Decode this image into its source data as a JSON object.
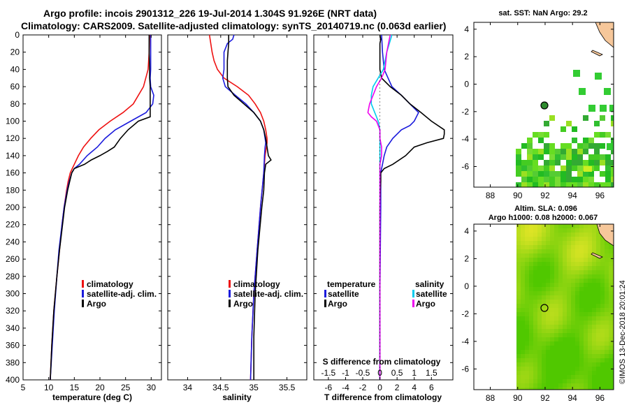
{
  "header": {
    "title_line1": "Argo profile: incois 2901312_226 19-Jul-2014 1.304S 91.926E (NRT data)",
    "title_line2": "Climatology: CARS2009. Satellite-adjusted climatology: synTS_20140719.nc (0.063d earlier)"
  },
  "colors": {
    "climatology": "#ee1111",
    "satellite": "#1a1adc",
    "argo": "#000000",
    "sat_salinity": "#00ccee",
    "argo_salinity": "#ee00ee",
    "land": "#f6c79a"
  },
  "depth_ticks": [
    "0",
    "20",
    "40",
    "60",
    "80",
    "100",
    "120",
    "140",
    "160",
    "180",
    "200",
    "220",
    "240",
    "260",
    "280",
    "300",
    "320",
    "340",
    "360",
    "380",
    "400"
  ],
  "stamp": "©IMOS 13-Dec-2018 20:01:24",
  "chart_data": [
    {
      "type": "line",
      "name": "temperature-panel",
      "xlabel": "temperature (deg C)",
      "ylabel": "depth",
      "xlim": [
        5,
        32
      ],
      "ylim": [
        400,
        0
      ],
      "xticks": [
        "5",
        "10",
        "15",
        "20",
        "25",
        "30"
      ],
      "legend": [
        "climatology",
        "satellite-adj. clim.",
        "Argo"
      ],
      "series": [
        {
          "name": "climatology",
          "depth": [
            0,
            20,
            40,
            60,
            80,
            90,
            100,
            110,
            120,
            130,
            140,
            150,
            155,
            160,
            170,
            180,
            200,
            220,
            250,
            280,
            320,
            360,
            400
          ],
          "values": [
            29.7,
            29.6,
            29.4,
            28.5,
            26.5,
            24.5,
            22.0,
            19.8,
            18.2,
            16.8,
            15.8,
            15.0,
            14.6,
            14.2,
            13.8,
            13.5,
            13.0,
            12.6,
            12.1,
            11.6,
            11.0,
            10.6,
            10.3
          ]
        },
        {
          "name": "satellite-adj. clim.",
          "depth": [
            0,
            20,
            40,
            50,
            60,
            70,
            80,
            90,
            100,
            110,
            120,
            130,
            140,
            150,
            155,
            160,
            170,
            180,
            200,
            220,
            250,
            280,
            320,
            360,
            400
          ],
          "values": [
            29.9,
            29.9,
            29.9,
            29.8,
            29.9,
            30.5,
            30.3,
            29.0,
            26.0,
            23.0,
            21.0,
            19.5,
            17.5,
            16.0,
            15.0,
            14.5,
            14.0,
            13.6,
            13.0,
            12.6,
            12.0,
            11.6,
            11.1,
            10.7,
            10.3
          ]
        },
        {
          "name": "Argo",
          "depth": [
            0,
            20,
            40,
            50,
            60,
            80,
            95,
            100,
            110,
            120,
            130,
            135,
            140,
            145,
            150,
            155,
            160,
            170,
            180,
            200,
            220,
            250,
            280,
            320,
            360,
            400
          ],
          "values": [
            29.6,
            29.6,
            29.7,
            29.7,
            29.8,
            29.8,
            29.8,
            27.5,
            25.5,
            24.0,
            22.8,
            21.5,
            20.0,
            18.3,
            17.0,
            15.0,
            14.5,
            14.1,
            13.7,
            13.1,
            12.7,
            12.1,
            11.6,
            11.0,
            10.6,
            10.3
          ]
        }
      ]
    },
    {
      "type": "line",
      "name": "salinity-panel",
      "xlabel": "salinity",
      "ylabel": "depth",
      "xlim": [
        33.7,
        35.8
      ],
      "ylim": [
        400,
        0
      ],
      "xticks": [
        "34",
        "34.5",
        "35",
        "35.5"
      ],
      "legend": [
        "climatology",
        "satellite-adj. clim.",
        "Argo"
      ],
      "series": [
        {
          "name": "climatology",
          "depth": [
            0,
            10,
            20,
            30,
            40,
            50,
            60,
            70,
            80,
            90,
            100,
            110,
            120,
            125,
            130,
            140,
            160,
            200,
            250,
            300,
            350,
            400
          ],
          "values": [
            34.33,
            34.35,
            34.37,
            34.4,
            34.45,
            34.55,
            34.75,
            34.92,
            35.02,
            35.1,
            35.15,
            35.18,
            35.2,
            35.2,
            35.19,
            35.17,
            35.15,
            35.1,
            35.05,
            35.0,
            34.97,
            34.95
          ]
        },
        {
          "name": "satellite-adj. clim.",
          "depth": [
            0,
            5,
            10,
            20,
            30,
            40,
            50,
            60,
            70,
            80,
            90,
            100,
            110,
            120,
            125,
            130,
            140,
            160,
            200,
            250,
            300,
            350,
            400
          ],
          "values": [
            34.7,
            34.68,
            34.6,
            34.55,
            34.55,
            34.55,
            34.53,
            34.57,
            34.72,
            34.88,
            35.0,
            35.1,
            35.15,
            35.17,
            35.18,
            35.17,
            35.16,
            35.15,
            35.1,
            35.05,
            35.0,
            34.97,
            34.95
          ]
        },
        {
          "name": "Argo",
          "depth": [
            0,
            10,
            20,
            30,
            40,
            50,
            60,
            70,
            80,
            90,
            100,
            110,
            120,
            130,
            140,
            145,
            150,
            160,
            180,
            200,
            250,
            300,
            350,
            400
          ],
          "values": [
            34.62,
            34.62,
            34.61,
            34.6,
            34.6,
            34.6,
            34.61,
            34.7,
            34.85,
            35.0,
            35.1,
            35.15,
            35.18,
            35.2,
            35.22,
            35.26,
            35.18,
            35.16,
            35.15,
            35.12,
            35.06,
            35.02,
            35.0,
            35.0
          ]
        }
      ]
    },
    {
      "type": "line",
      "name": "difference-panel",
      "xlabel": "T difference from climatology",
      "x2label": "S difference from climatology",
      "ylabel": "depth",
      "xlim": [
        -7.7,
        8.5
      ],
      "ylim": [
        400,
        0
      ],
      "xticks": [
        "-6",
        "-4",
        "-2",
        "0",
        "2",
        "4",
        "6"
      ],
      "x2ticks": [
        "-1.5",
        "-1",
        "-0.5",
        "0",
        "0.5",
        "1",
        "1.5"
      ],
      "legend": [
        "temperature",
        "satellite",
        "Argo",
        "salinity",
        "satellite",
        "Argo"
      ],
      "series": [
        {
          "name": "T satellite",
          "depth": [
            0,
            20,
            40,
            60,
            70,
            80,
            90,
            100,
            105,
            110,
            120,
            130,
            140,
            150,
            155,
            160,
            170,
            180,
            200,
            250,
            300,
            350,
            400
          ],
          "values": [
            0.2,
            0.3,
            0.5,
            1.4,
            2.5,
            3.5,
            4.5,
            4.0,
            3.5,
            2.5,
            1.5,
            0.8,
            0.5,
            0.3,
            0.2,
            0.1,
            0.1,
            0.1,
            0.1,
            0.05,
            0,
            0,
            0
          ]
        },
        {
          "name": "T Argo",
          "depth": [
            0,
            5,
            10,
            20,
            40,
            50,
            60,
            70,
            80,
            90,
            100,
            110,
            115,
            120,
            125,
            130,
            135,
            140,
            150,
            155,
            160,
            170,
            180,
            200,
            250,
            300,
            350,
            400
          ],
          "values": [
            0,
            0.1,
            0,
            0,
            0,
            0.2,
            1.2,
            2.5,
            3.5,
            4.8,
            6.0,
            7.5,
            7.5,
            7.4,
            5.5,
            4.0,
            3.5,
            3.0,
            1.5,
            0.5,
            0.1,
            0.1,
            0.05,
            0,
            0,
            0,
            0,
            0
          ]
        },
        {
          "name": "S satellite",
          "depth": [
            0,
            20,
            40,
            50,
            60,
            70,
            80,
            90,
            95,
            100,
            110,
            120,
            140,
            160,
            200,
            250,
            300,
            350,
            400
          ],
          "values": [
            0.35,
            0.2,
            0.1,
            -0.05,
            -0.2,
            -0.25,
            -0.25,
            -0.15,
            -0.1,
            -0.05,
            0,
            0,
            0,
            0,
            0,
            0,
            0,
            0,
            0
          ]
        },
        {
          "name": "S Argo",
          "depth": [
            0,
            20,
            40,
            50,
            60,
            70,
            80,
            90,
            95,
            100,
            110,
            120,
            130,
            140,
            150,
            160,
            180,
            200,
            250,
            300,
            350,
            400
          ],
          "values": [
            0.3,
            0.2,
            0.15,
            0.05,
            -0.1,
            -0.2,
            -0.3,
            -0.35,
            -0.25,
            -0.1,
            0,
            0,
            0.05,
            0.05,
            0,
            0,
            0,
            0,
            0,
            0,
            0,
            0
          ]
        }
      ]
    },
    {
      "type": "heatmap",
      "name": "sst-map",
      "title": "sat. SST: NaN Argo: 29.2",
      "xticks": [
        "88",
        "90",
        "92",
        "94",
        "96"
      ],
      "yticks": [
        "4",
        "2",
        "0",
        "-2",
        "-4",
        "-6"
      ],
      "xlim": [
        86.8,
        97.0
      ],
      "ylim": [
        -7.5,
        4.5
      ],
      "argo_position": [
        91.926,
        -1.304
      ]
    },
    {
      "type": "heatmap",
      "name": "sla-map",
      "title_line1": "Altim. SLA: 0.096",
      "title_line2": "Argo h1000: 0.08 h2000: 0.067",
      "xticks": [
        "88",
        "90",
        "92",
        "94",
        "96"
      ],
      "yticks": [
        "4",
        "2",
        "0",
        "-2",
        "-4",
        "-6"
      ],
      "xlim": [
        86.8,
        97.0
      ],
      "ylim": [
        -7.5,
        4.5
      ],
      "argo_position": [
        91.926,
        -1.304
      ]
    }
  ]
}
